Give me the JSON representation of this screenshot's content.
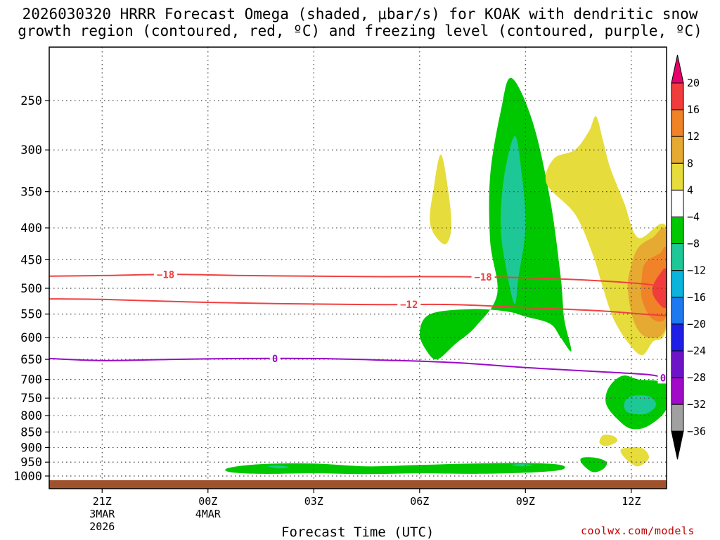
{
  "title": {
    "line1": "2026030320 HRRR Forecast Omega (shaded, μbar/s) for KOAK with dendritic snow",
    "line2": "growth region (contoured, red, ºC) and freezing level (contoured, purple, ºC)"
  },
  "footer": {
    "xlabel": "Forecast Time (UTC)",
    "credit": "coolwx.com/models"
  },
  "chart_data": {
    "type": "heatmap",
    "y_axis": {
      "label": "",
      "scale": "log",
      "inverted": true,
      "ticks": [
        250,
        300,
        350,
        400,
        450,
        500,
        550,
        600,
        650,
        700,
        750,
        800,
        850,
        900,
        950,
        1000
      ],
      "tick_labels": [
        "250",
        "300",
        "350",
        "400",
        "450",
        "500",
        "550",
        "600",
        "650",
        "700",
        "750",
        "800",
        "850",
        "900",
        "950",
        "1000"
      ]
    },
    "x_axis": {
      "label": "Forecast Time (UTC)",
      "range_hours": [
        -1.5,
        16
      ],
      "ticks": [
        {
          "hour": 0,
          "label": "21Z",
          "sub1": "3MAR",
          "sub2": "2026"
        },
        {
          "hour": 3,
          "label": "00Z",
          "sub1": "4MAR",
          "sub2": ""
        },
        {
          "hour": 6,
          "label": "03Z",
          "sub1": "",
          "sub2": ""
        },
        {
          "hour": 9,
          "label": "06Z",
          "sub1": "",
          "sub2": ""
        },
        {
          "hour": 12,
          "label": "09Z",
          "sub1": "",
          "sub2": ""
        },
        {
          "hour": 15,
          "label": "12Z",
          "sub1": "",
          "sub2": ""
        }
      ]
    },
    "grid": true,
    "colorbar": {
      "labels": [
        "20",
        "16",
        "12",
        "8",
        "4",
        "−4",
        "−8",
        "−12",
        "−16",
        "−20",
        "−24",
        "−28",
        "−32",
        "−36"
      ],
      "colors": [
        "#e8006a",
        "#f03c3c",
        "#f08228",
        "#e6aa32",
        "#e6dc3c",
        "#ffffff",
        "#00c800",
        "#1ec896",
        "#0ab4dc",
        "#1e78f0",
        "#1e1ee6",
        "#6e14c8",
        "#a00ac8",
        "#a0a0a0",
        "#000000"
      ]
    },
    "contours": [
      {
        "kind": "dendritic",
        "color": "#f04040",
        "label": "−18",
        "label_hours": [
          1.8,
          10.8
        ],
        "points": [
          [
            -1.5,
            478
          ],
          [
            0,
            477
          ],
          [
            2,
            475
          ],
          [
            4,
            477
          ],
          [
            6,
            478
          ],
          [
            8,
            479
          ],
          [
            10,
            479
          ],
          [
            12,
            481
          ],
          [
            14,
            486
          ],
          [
            15.5,
            493
          ],
          [
            16,
            499
          ]
        ]
      },
      {
        "kind": "dendritic",
        "color": "#f04040",
        "label": "−12",
        "label_hours": [
          8.7
        ],
        "points": [
          [
            -1.5,
            520
          ],
          [
            0,
            521
          ],
          [
            2,
            525
          ],
          [
            4,
            528
          ],
          [
            6,
            530
          ],
          [
            8,
            531
          ],
          [
            10,
            531
          ],
          [
            12,
            537
          ],
          [
            14,
            543
          ],
          [
            15.5,
            551
          ],
          [
            16,
            553
          ]
        ]
      },
      {
        "kind": "freezing",
        "color": "#9a0ac8",
        "label": "0",
        "label_hours": [
          4.9,
          15.9
        ],
        "points": [
          [
            -1.5,
            648
          ],
          [
            0,
            653
          ],
          [
            2,
            650
          ],
          [
            4,
            648
          ],
          [
            6,
            648
          ],
          [
            8,
            652
          ],
          [
            10,
            658
          ],
          [
            12,
            670
          ],
          [
            14,
            680
          ],
          [
            15.5,
            688
          ],
          [
            16,
            698
          ]
        ]
      }
    ],
    "shaded_regions": [
      {
        "color": "#00c800",
        "value_range": "-8 to -4",
        "points": [
          [
            11.6,
            230
          ],
          [
            12.2,
            270
          ],
          [
            12.7,
            360
          ],
          [
            13.0,
            480
          ],
          [
            13.1,
            560
          ],
          [
            13.3,
            630
          ],
          [
            13.0,
            600
          ],
          [
            12.7,
            570
          ],
          [
            12.0,
            555
          ],
          [
            11.5,
            545
          ],
          [
            10.5,
            540
          ],
          [
            9.3,
            550
          ],
          [
            9.0,
            590
          ],
          [
            9.2,
            630
          ],
          [
            9.5,
            650
          ],
          [
            10.0,
            615
          ],
          [
            10.6,
            575
          ],
          [
            11.2,
            510
          ],
          [
            11.0,
            420
          ],
          [
            11.0,
            330
          ],
          [
            11.3,
            260
          ]
        ]
      },
      {
        "color": "#1ec896",
        "value_range": "-12 to -8",
        "points": [
          [
            11.7,
            285
          ],
          [
            11.9,
            330
          ],
          [
            12.0,
            400
          ],
          [
            11.8,
            480
          ],
          [
            11.7,
            530
          ],
          [
            11.5,
            480
          ],
          [
            11.3,
            400
          ],
          [
            11.4,
            330
          ]
        ]
      },
      {
        "color": "#e6dc3c",
        "value_range": "4 to 8",
        "points": [
          [
            9.6,
            305
          ],
          [
            9.8,
            345
          ],
          [
            9.9,
            400
          ],
          [
            9.7,
            425
          ],
          [
            9.3,
            395
          ],
          [
            9.4,
            345
          ]
        ]
      },
      {
        "color": "#e6dc3c",
        "value_range": "4 to 8",
        "points": [
          [
            14.0,
            265
          ],
          [
            14.2,
            290
          ],
          [
            14.4,
            320
          ],
          [
            14.8,
            365
          ],
          [
            15.2,
            415
          ],
          [
            16,
            400
          ],
          [
            16,
            575
          ],
          [
            15.6,
            610
          ],
          [
            15.3,
            640
          ],
          [
            14.9,
            610
          ],
          [
            14.5,
            560
          ],
          [
            14.2,
            500
          ],
          [
            13.9,
            440
          ],
          [
            13.4,
            380
          ],
          [
            12.6,
            340
          ],
          [
            12.8,
            310
          ],
          [
            13.4,
            300
          ],
          [
            13.8,
            280
          ]
        ]
      },
      {
        "color": "#e6aa32",
        "value_range": "8 to 12",
        "points": [
          [
            15.2,
            430
          ],
          [
            15.6,
            415
          ],
          [
            16,
            408
          ],
          [
            16,
            570
          ],
          [
            15.5,
            600
          ],
          [
            15.1,
            570
          ],
          [
            14.9,
            500
          ],
          [
            15.0,
            460
          ]
        ]
      },
      {
        "color": "#f08228",
        "value_range": "12 to 16",
        "points": [
          [
            15.4,
            455
          ],
          [
            15.8,
            440
          ],
          [
            16,
            435
          ],
          [
            16,
            550
          ],
          [
            15.6,
            560
          ],
          [
            15.3,
            520
          ],
          [
            15.3,
            480
          ]
        ]
      },
      {
        "color": "#f03c3c",
        "value_range": "16 to 20",
        "points": [
          [
            15.8,
            475
          ],
          [
            16,
            468
          ],
          [
            16,
            535
          ],
          [
            15.7,
            522
          ],
          [
            15.6,
            500
          ]
        ]
      },
      {
        "color": "#00c800",
        "value_range": "-8 to -4",
        "points": [
          [
            14.8,
            690
          ],
          [
            15.2,
            700
          ],
          [
            16,
            712
          ],
          [
            16,
            780
          ],
          [
            15.5,
            830
          ],
          [
            15.0,
            840
          ],
          [
            14.6,
            810
          ],
          [
            14.3,
            770
          ],
          [
            14.3,
            735
          ],
          [
            14.5,
            705
          ]
        ]
      },
      {
        "color": "#1ec896",
        "value_range": "-12 to -8",
        "points": [
          [
            15.0,
            745
          ],
          [
            15.5,
            745
          ],
          [
            15.7,
            770
          ],
          [
            15.4,
            795
          ],
          [
            14.9,
            790
          ],
          [
            14.8,
            765
          ]
        ]
      },
      {
        "color": "#e6dc3c",
        "value_range": "4 to 8",
        "points": [
          [
            14.2,
            860
          ],
          [
            14.5,
            863
          ],
          [
            14.6,
            880
          ],
          [
            14.3,
            895
          ],
          [
            14.1,
            885
          ]
        ]
      },
      {
        "color": "#e6dc3c",
        "value_range": "4 to 8",
        "points": [
          [
            14.8,
            902
          ],
          [
            15.3,
            902
          ],
          [
            15.5,
            935
          ],
          [
            15.2,
            965
          ],
          [
            14.9,
            945
          ],
          [
            14.7,
            915
          ]
        ]
      },
      {
        "color": "#00c800",
        "value_range": "-8 to -4",
        "points": [
          [
            13.6,
            935
          ],
          [
            14.0,
            935
          ],
          [
            14.3,
            950
          ],
          [
            14.2,
            975
          ],
          [
            13.9,
            985
          ],
          [
            13.6,
            955
          ]
        ]
      },
      {
        "color": "#00c800",
        "value_range": "-8 to -4",
        "points": [
          [
            3.6,
            970
          ],
          [
            4.5,
            957
          ],
          [
            6.0,
            955
          ],
          [
            7.5,
            965
          ],
          [
            9.0,
            960
          ],
          [
            10.5,
            955
          ],
          [
            12.0,
            953
          ],
          [
            13.0,
            960
          ],
          [
            13.0,
            978
          ],
          [
            12.0,
            988
          ],
          [
            10.5,
            992
          ],
          [
            9.0,
            990
          ],
          [
            7.5,
            993
          ],
          [
            6.0,
            990
          ],
          [
            4.5,
            992
          ],
          [
            3.6,
            985
          ]
        ]
      },
      {
        "color": "#1ec896",
        "value_range": "-12 to -8",
        "points": [
          [
            4.7,
            965
          ],
          [
            5.0,
            962
          ],
          [
            5.3,
            968
          ],
          [
            5.0,
            972
          ]
        ]
      },
      {
        "color": "#1ec896",
        "value_range": "-12 to -8",
        "points": [
          [
            11.6,
            960
          ],
          [
            11.9,
            957
          ],
          [
            12.2,
            961
          ],
          [
            11.9,
            965
          ]
        ]
      }
    ]
  }
}
